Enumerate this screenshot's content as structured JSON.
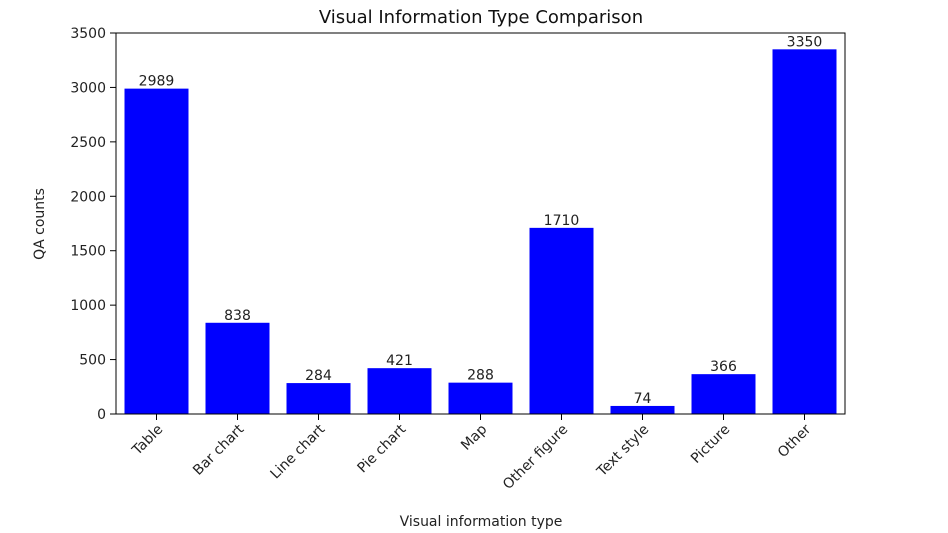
{
  "chart_data": {
    "type": "bar",
    "title": "Visual Information Type Comparison",
    "xlabel": "Visual information type",
    "ylabel": "QA counts",
    "categories": [
      "Table",
      "Bar chart",
      "Line chart",
      "Pie chart",
      "Map",
      "Other figure",
      "Text style",
      "Picture",
      "Other"
    ],
    "values": [
      2989,
      838,
      284,
      421,
      288,
      1710,
      74,
      366,
      3350
    ],
    "value_labels": [
      "2989",
      "838",
      "284",
      "421",
      "288",
      "1710",
      "74",
      "366",
      "3350"
    ],
    "ylim": [
      0,
      3500
    ],
    "yticks": [
      0,
      500,
      1000,
      1500,
      2000,
      2500,
      3000,
      3500
    ],
    "ytick_labels": [
      "0",
      "500",
      "1000",
      "1500",
      "2000",
      "2500",
      "3000",
      "3500"
    ],
    "bar_color": "#0000ff",
    "grid": false,
    "legend": false,
    "xtick_rotation_degrees": 45
  }
}
